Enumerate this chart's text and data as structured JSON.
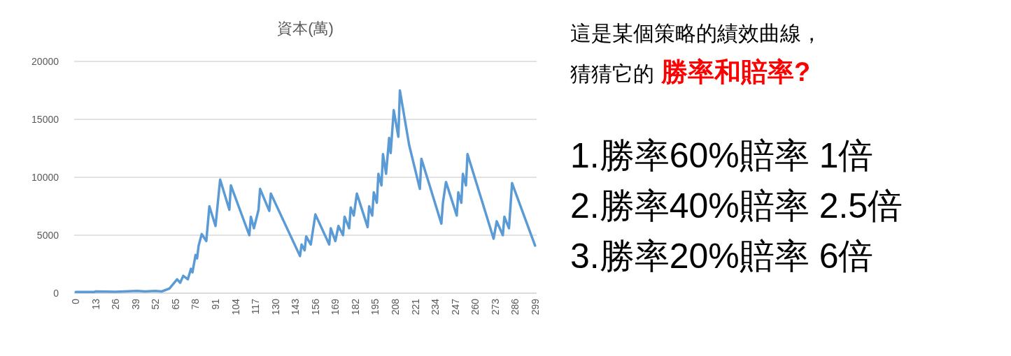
{
  "chart_data": {
    "type": "line",
    "title": "資本(萬)",
    "x": [
      0,
      12,
      13,
      26,
      40,
      45,
      52,
      56,
      61,
      66,
      68,
      70,
      73,
      75,
      76,
      78,
      79,
      80,
      82,
      85,
      87,
      91,
      94,
      100,
      101,
      113,
      114,
      116,
      119,
      120,
      126,
      127,
      146,
      147,
      149,
      150,
      153,
      156,
      165,
      166,
      169,
      171,
      174,
      175,
      178,
      179,
      181,
      183,
      190,
      191,
      193,
      194,
      196,
      197,
      199,
      200,
      202,
      204,
      205,
      207,
      210,
      211,
      217,
      224,
      225,
      238,
      239,
      241,
      248,
      249,
      251,
      252,
      254,
      255,
      272,
      274,
      278,
      279,
      282,
      284,
      299
    ],
    "series": [
      {
        "color": "#5b9bd5",
        "values": [
          100,
          100,
          150,
          120,
          200,
          150,
          200,
          150,
          400,
          1200,
          900,
          1500,
          1200,
          2100,
          1800,
          3300,
          3000,
          4100,
          5100,
          4500,
          7500,
          5800,
          9800,
          7200,
          9300,
          5000,
          6600,
          5600,
          7200,
          9000,
          7100,
          8600,
          3200,
          4200,
          3700,
          4900,
          4200,
          6800,
          4200,
          5600,
          4500,
          5800,
          5000,
          6600,
          5600,
          7400,
          6700,
          8600,
          5700,
          7500,
          6700,
          8700,
          7800,
          10300,
          9300,
          12000,
          10300,
          13400,
          12100,
          15800,
          13500,
          17500,
          12800,
          9000,
          11600,
          6000,
          7800,
          9600,
          6700,
          8700,
          7800,
          10300,
          9300,
          12000,
          4700,
          6200,
          5000,
          6600,
          5600,
          9500,
          4100
        ]
      }
    ],
    "xlim": [
      -1,
      300
    ],
    "xticks": [
      0,
      13,
      26,
      39,
      52,
      65,
      78,
      91,
      104,
      117,
      130,
      143,
      156,
      169,
      182,
      195,
      208,
      221,
      234,
      247,
      260,
      273,
      286,
      299
    ],
    "ylim": [
      0,
      20000
    ],
    "yticks": [
      0,
      5000,
      10000,
      15000,
      20000
    ],
    "grid": "y",
    "marker": "none",
    "line_style": "solid",
    "annotations": [
      "這是某個策略的績效曲線，",
      "猜猜它的",
      "勝率和賠率?",
      "1.勝率60%賠率 1倍",
      "2.勝率40%賠率 2.5倍",
      "3.勝率20%賠率 6倍"
    ]
  }
}
